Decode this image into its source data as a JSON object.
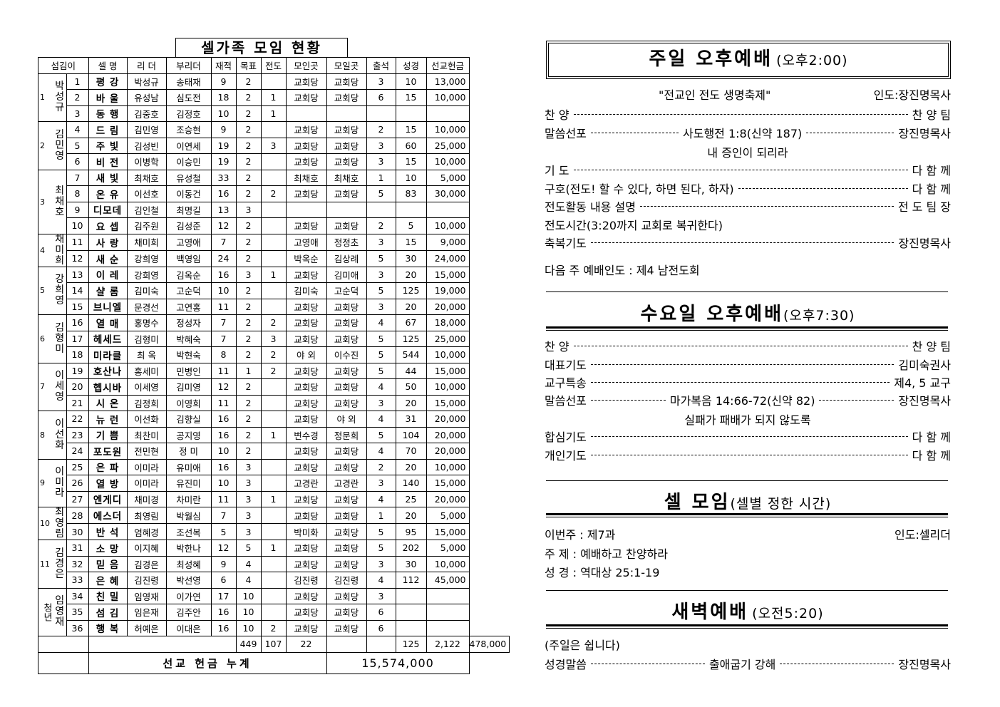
{
  "table": {
    "title": "셀가족 모임 현황",
    "headers": [
      "섬김이",
      "셀 명",
      "리 더",
      "부리더",
      "재적",
      "목표",
      "전도",
      "모인곳",
      "모일곳",
      "출석",
      "성경",
      "선교헌금"
    ],
    "groups": [
      {
        "num": "1",
        "name": "박성규",
        "rows": [
          [
            "1",
            "평 강",
            "박성규",
            "송태재",
            "9",
            "2",
            "",
            "교회당",
            "교회당",
            "3",
            "10",
            "13,000"
          ],
          [
            "2",
            "바 울",
            "유성남",
            "심도전",
            "18",
            "2",
            "1",
            "교회당",
            "교회당",
            "6",
            "15",
            "10,000"
          ],
          [
            "3",
            "동 행",
            "김중호",
            "김정호",
            "10",
            "2",
            "1",
            "",
            "",
            "",
            "",
            ""
          ]
        ]
      },
      {
        "num": "2",
        "name": "김민영",
        "rows": [
          [
            "4",
            "드 림",
            "김민영",
            "조승현",
            "9",
            "2",
            "",
            "교회당",
            "교회당",
            "2",
            "15",
            "10,000"
          ],
          [
            "5",
            "주 빛",
            "김성빈",
            "이연세",
            "19",
            "2",
            "3",
            "교회당",
            "교회당",
            "3",
            "60",
            "25,000"
          ],
          [
            "6",
            "비 전",
            "이병학",
            "이승민",
            "19",
            "2",
            "",
            "교회당",
            "교회당",
            "3",
            "15",
            "10,000"
          ]
        ]
      },
      {
        "num": "3",
        "name": "최채호",
        "rows": [
          [
            "7",
            "새 빛",
            "최채호",
            "유성철",
            "33",
            "2",
            "",
            "최채호",
            "최채호",
            "1",
            "10",
            "5,000"
          ],
          [
            "8",
            "온 유",
            "이선호",
            "이동건",
            "16",
            "2",
            "2",
            "교회당",
            "교회당",
            "5",
            "83",
            "30,000"
          ],
          [
            "9",
            "디모데",
            "김인철",
            "최명길",
            "13",
            "3",
            "",
            "",
            "",
            "",
            "",
            ""
          ],
          [
            "10",
            "요 셉",
            "김주원",
            "김성준",
            "12",
            "2",
            "",
            "교회당",
            "교회당",
            "2",
            "5",
            "10,000"
          ]
        ]
      },
      {
        "num": "4",
        "name": "채미희",
        "rows": [
          [
            "11",
            "사 랑",
            "채미희",
            "고영애",
            "7",
            "2",
            "",
            "고영애",
            "정정초",
            "3",
            "15",
            "9,000"
          ],
          [
            "12",
            "새 순",
            "강희영",
            "백영임",
            "24",
            "2",
            "",
            "박옥순",
            "김상례",
            "5",
            "30",
            "24,000"
          ]
        ]
      },
      {
        "num": "5",
        "name": "강희영",
        "rows": [
          [
            "13",
            "이 레",
            "강희영",
            "김옥순",
            "16",
            "3",
            "1",
            "교회당",
            "김미애",
            "3",
            "20",
            "15,000"
          ],
          [
            "14",
            "샬 롬",
            "김미숙",
            "고순덕",
            "10",
            "2",
            "",
            "김미숙",
            "고순덕",
            "5",
            "125",
            "19,000"
          ],
          [
            "15",
            "브니엘",
            "문경선",
            "고연홍",
            "11",
            "2",
            "",
            "교회당",
            "교회당",
            "3",
            "20",
            "20,000"
          ]
        ]
      },
      {
        "num": "6",
        "name": "김형미",
        "rows": [
          [
            "16",
            "열 매",
            "홍명수",
            "정성자",
            "7",
            "2",
            "2",
            "교회당",
            "교회당",
            "4",
            "67",
            "18,000"
          ],
          [
            "17",
            "헤세드",
            "김형미",
            "박혜숙",
            "7",
            "2",
            "3",
            "교회당",
            "교회당",
            "5",
            "125",
            "25,000"
          ],
          [
            "18",
            "미라클",
            "최 옥",
            "박현숙",
            "8",
            "2",
            "2",
            "야 외",
            "이수진",
            "5",
            "544",
            "10,000"
          ]
        ]
      },
      {
        "num": "7",
        "name": "이세영",
        "rows": [
          [
            "19",
            "호산나",
            "홍세미",
            "민병인",
            "11",
            "1",
            "2",
            "교회당",
            "교회당",
            "5",
            "44",
            "15,000"
          ],
          [
            "20",
            "헵시바",
            "이세영",
            "김미영",
            "12",
            "2",
            "",
            "교회당",
            "교회당",
            "4",
            "50",
            "10,000"
          ],
          [
            "21",
            "시 온",
            "김정희",
            "이영희",
            "11",
            "2",
            "",
            "교회당",
            "교회당",
            "3",
            "20",
            "15,000"
          ]
        ]
      },
      {
        "num": "8",
        "name": "이선화",
        "rows": [
          [
            "22",
            "뉴 런",
            "이선화",
            "김향실",
            "16",
            "2",
            "",
            "교회당",
            "야 외",
            "4",
            "31",
            "20,000"
          ],
          [
            "23",
            "기 쁨",
            "최찬미",
            "공지영",
            "16",
            "2",
            "1",
            "변수경",
            "정문희",
            "5",
            "104",
            "20,000"
          ],
          [
            "24",
            "포도원",
            "전민현",
            "정 미",
            "10",
            "2",
            "",
            "교회당",
            "교회당",
            "4",
            "70",
            "20,000"
          ]
        ]
      },
      {
        "num": "9",
        "name": "이미라",
        "rows": [
          [
            "25",
            "은 파",
            "이미라",
            "유미애",
            "16",
            "3",
            "",
            "교회당",
            "교회당",
            "2",
            "20",
            "10,000"
          ],
          [
            "26",
            "열 방",
            "이미라",
            "유진미",
            "10",
            "3",
            "",
            "고경란",
            "고경란",
            "3",
            "140",
            "15,000"
          ],
          [
            "27",
            "엔게디",
            "채미경",
            "차미란",
            "11",
            "3",
            "1",
            "교회당",
            "교회당",
            "4",
            "25",
            "20,000"
          ]
        ]
      },
      {
        "num": "10",
        "name": "최영림",
        "rows": [
          [
            "28",
            "에스더",
            "최영림",
            "박월심",
            "7",
            "3",
            "",
            "교회당",
            "교회당",
            "1",
            "20",
            "5,000"
          ],
          [
            "30",
            "반 석",
            "엄혜경",
            "조선복",
            "5",
            "3",
            "",
            "박미화",
            "교회당",
            "5",
            "95",
            "15,000"
          ]
        ]
      },
      {
        "num": "11",
        "name": "김경은",
        "rows": [
          [
            "31",
            "소 망",
            "이지혜",
            "박한나",
            "12",
            "5",
            "1",
            "교회당",
            "교회당",
            "5",
            "202",
            "5,000"
          ],
          [
            "32",
            "믿 음",
            "김경은",
            "최성혜",
            "9",
            "4",
            "",
            "교회당",
            "교회당",
            "3",
            "30",
            "10,000"
          ],
          [
            "33",
            "은 혜",
            "김진령",
            "박선영",
            "6",
            "4",
            "",
            "김진령",
            "김진령",
            "4",
            "112",
            "45,000"
          ]
        ]
      },
      {
        "num": "청년",
        "name": "임영재",
        "rows": [
          [
            "34",
            "친 밀",
            "임영재",
            "이가연",
            "17",
            "10",
            "",
            "교회당",
            "교회당",
            "3",
            "",
            ""
          ],
          [
            "35",
            "섬 김",
            "임은재",
            "김주안",
            "16",
            "10",
            "",
            "교회당",
            "교회당",
            "6",
            "",
            ""
          ],
          [
            "36",
            "행 복",
            "허예은",
            "이대은",
            "16",
            "10",
            "2",
            "교회당",
            "교회당",
            "6",
            "",
            ""
          ]
        ]
      }
    ],
    "totals": {
      "enrolled": "449",
      "goal": "107",
      "evangelism": "22",
      "attendance": "125",
      "bible": "2,122",
      "offering": "478,000"
    },
    "cumulative_label": "선교 헌금 누계",
    "cumulative_value": "15,574,000"
  },
  "sunday": {
    "title": "주일 오후예배",
    "time": "(오후2:00)",
    "theme": "\"전교인 전도 생명축제\"",
    "leader": "인도:장진명목사",
    "items": [
      {
        "left": "찬 양",
        "mid": "",
        "right": "찬 양 팀"
      },
      {
        "left": "말씀선포",
        "mid": "사도행전 1:8(신약 187)",
        "right": "장진명목사"
      },
      {
        "left": "기 도",
        "mid": "",
        "right": "다 함 께"
      },
      {
        "left": "구호(전도! 할 수 있다, 하면 된다, 하자)",
        "mid": "",
        "right": "다 함 께"
      },
      {
        "left": "전도활동 내용 설명",
        "mid": "",
        "right": "전 도 팀 장"
      },
      {
        "left": "축복기도",
        "mid": "",
        "right": "장진명목사"
      }
    ],
    "sermon_title": "내 증인이 되리라",
    "mission_time": "전도시간(3:20까지 교회로 복귀한다)",
    "next_week": "다음 주 예배인도 : 제4 남전도회"
  },
  "wednesday": {
    "title": "수요일 오후예배",
    "time": "(오후7:30)",
    "items": [
      {
        "left": "찬 양",
        "mid": "",
        "right": "찬 양 팀"
      },
      {
        "left": "대표기도",
        "mid": "",
        "right": "김미숙권사"
      },
      {
        "left": "교구특송",
        "mid": "",
        "right": "제4, 5 교구"
      },
      {
        "left": "말씀선포",
        "mid": "마가복음 14:66-72(신약 82)",
        "right": "장진명목사"
      },
      {
        "left": "합심기도",
        "mid": "",
        "right": "다 함 께"
      },
      {
        "left": "개인기도",
        "mid": "",
        "right": "다 함 께"
      }
    ],
    "sermon_title": "실패가 패배가 되지 않도록"
  },
  "cell": {
    "title": "셀 모임",
    "time": "(셀별 정한 시간)",
    "this_week": "이번주 : 제7과",
    "leader": "인도:셀리더",
    "topic": "주 제 : 예배하고 찬양하라",
    "scripture": "성 경 : 역대상 25:1-19"
  },
  "dawn": {
    "title": "새벽예배",
    "time": "(오전5:20)",
    "note": "(주일은 쉽니다)",
    "left": "성경말씀",
    "mid": "출애굽기 강해",
    "right": "장진명목사"
  }
}
